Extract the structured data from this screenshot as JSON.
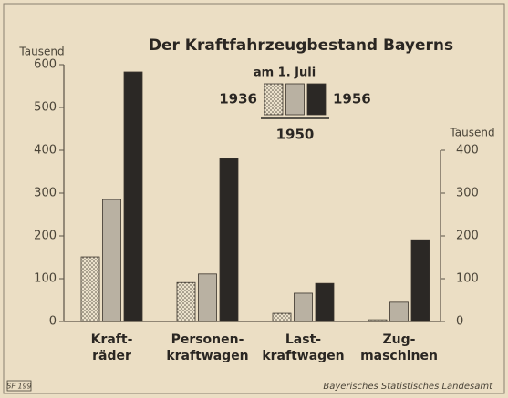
{
  "chart_data": {
    "type": "bar",
    "title": "Der Kraftfahrzeugbestand Bayerns",
    "legend_title": "am 1. Juli",
    "ylabel": "Tausend",
    "y2label": "Tausend",
    "categories": [
      [
        "Kraft-",
        "räder"
      ],
      [
        "Personen-",
        "kraftwagen"
      ],
      [
        "Last-",
        "kraftwagen"
      ],
      [
        "Zug-",
        "maschinen"
      ]
    ],
    "series": [
      {
        "name": "1936",
        "color": "#ece2cc",
        "hatch": "dots",
        "values": [
          151,
          91,
          19,
          4
        ]
      },
      {
        "name": "1950",
        "color": "#b9b1a2",
        "values": [
          285,
          111,
          66,
          45
        ]
      },
      {
        "name": "1956",
        "color": "#2b2825",
        "values": [
          583,
          381,
          89,
          191
        ]
      }
    ],
    "ylim": [
      0,
      600
    ],
    "yticks": [
      0,
      100,
      200,
      300,
      400,
      500,
      600
    ],
    "y2lim": [
      0,
      400
    ],
    "y2ticks": [
      0,
      100,
      200,
      300,
      400
    ],
    "source": "Bayerisches Statistisches Landesamt",
    "code": "SF 199"
  }
}
